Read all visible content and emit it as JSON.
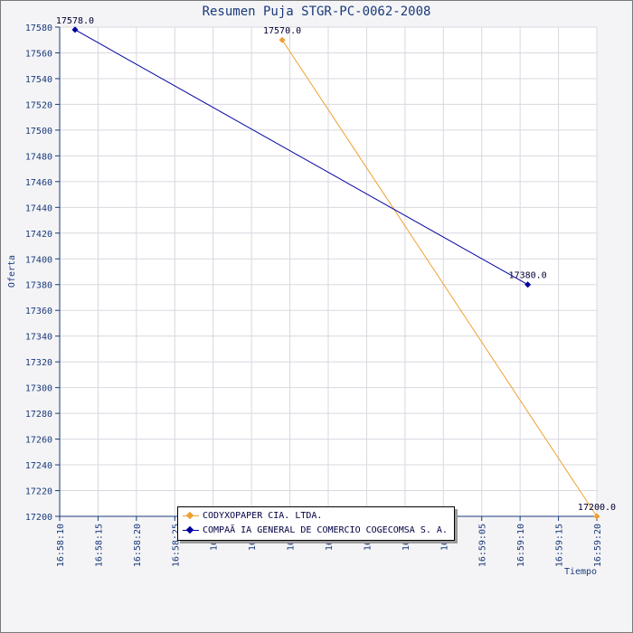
{
  "chart_data": {
    "type": "line",
    "title": "Resumen Puja STGR-PC-0062-2008",
    "xlabel": "Tiempo",
    "ylabel": "Oferta",
    "ylim": [
      17200,
      17580
    ],
    "xlim": [
      "16:58:10",
      "16:59:20"
    ],
    "y_ticks": [
      17200,
      17220,
      17240,
      17260,
      17280,
      17300,
      17320,
      17340,
      17360,
      17380,
      17400,
      17420,
      17440,
      17460,
      17480,
      17500,
      17520,
      17540,
      17560,
      17580
    ],
    "x_ticks": [
      "16:58:10",
      "16:58:15",
      "16:58:20",
      "16:58:25",
      "16:58:30",
      "16:58:35",
      "16:58:40",
      "16:58:45",
      "16:58:50",
      "16:58:55",
      "16:59:00",
      "16:59:05",
      "16:59:10",
      "16:59:15",
      "16:59:20"
    ],
    "x_tick_labels": [
      "16:58:10",
      "16:58:15",
      "16:58:20",
      "16:58:25",
      "16:58",
      "16:58",
      "16:58",
      "16:58",
      "16:58",
      "16:59",
      "16:59",
      "16:59:05",
      "16:59:10",
      "16:59:15",
      "16:59:20"
    ],
    "grid": true,
    "legend_position": "bottom-center",
    "series": [
      {
        "name": "CODYXOPAPER CIA. LTDA.",
        "color": "#f0a030",
        "points": [
          {
            "x": "16:58:39",
            "y": 17570.0,
            "label": "17570.0"
          },
          {
            "x": "16:59:20",
            "y": 17200.0,
            "label": "17200.0"
          }
        ]
      },
      {
        "name": "COMPAÃ IA GENERAL DE COMERCIO COGECOMSA S. A.",
        "color": "#0000a0",
        "points": [
          {
            "x": "16:58:12",
            "y": 17578.0,
            "label": "17578.0"
          },
          {
            "x": "16:59:11",
            "y": 17380.0,
            "label": "17380.0"
          }
        ]
      }
    ]
  }
}
